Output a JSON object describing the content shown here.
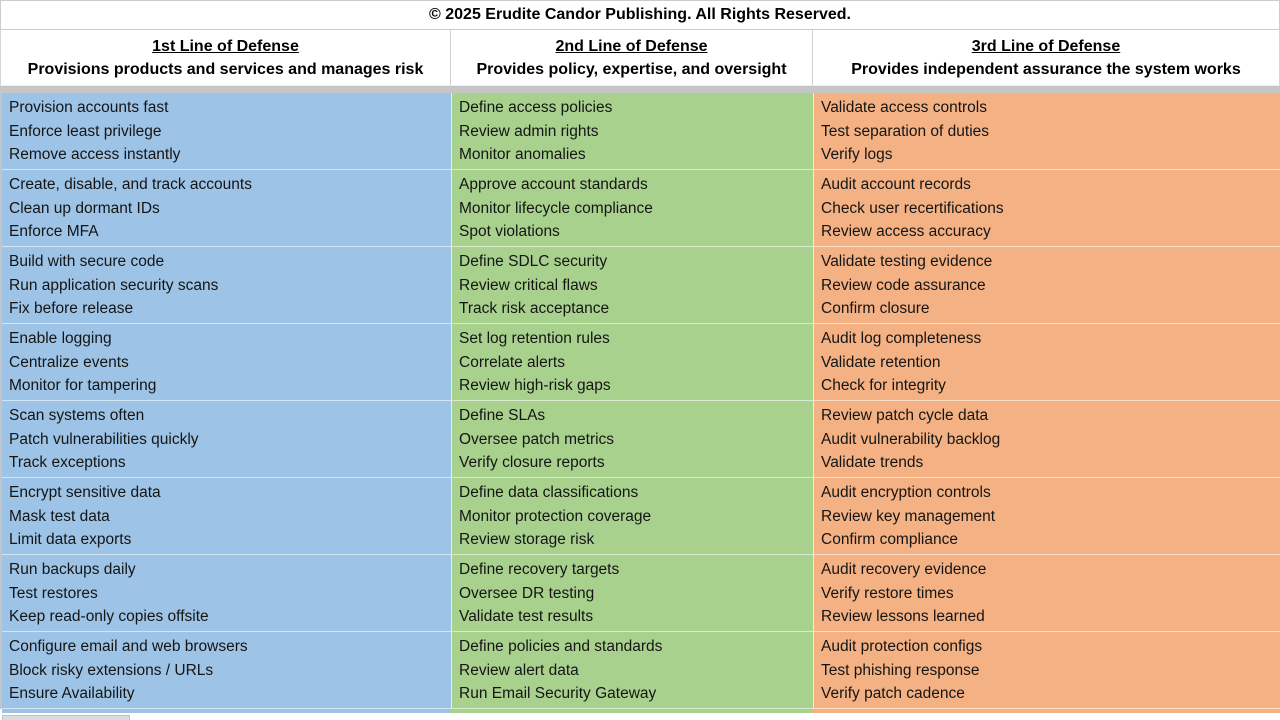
{
  "title_bar": {
    "text": "© 2025 Erudite Candor Publishing. All Rights Reserved."
  },
  "columns": [
    {
      "title": "1st Line of Defense",
      "subtitle": "Provisions products and services and manages risk",
      "color": "#9DC3E6"
    },
    {
      "title": "2nd Line of Defense",
      "subtitle": "Provides policy, expertise, and oversight",
      "color": "#A9D18E"
    },
    {
      "title": "3rd Line of Defense",
      "subtitle": "Provides independent assurance the system works",
      "color": "#F4B183"
    }
  ],
  "rows": [
    {
      "cells": [
        {
          "lines": [
            "Provision accounts fast",
            "Enforce least privilege",
            "Remove access instantly"
          ]
        },
        {
          "lines": [
            "Define access policies",
            "Review admin rights",
            "Monitor anomalies"
          ]
        },
        {
          "lines": [
            "Validate access controls",
            "Test separation of duties",
            "Verify logs"
          ]
        }
      ]
    },
    {
      "cells": [
        {
          "lines": [
            "Create, disable, and track accounts",
            "Clean up dormant IDs",
            "Enforce MFA"
          ]
        },
        {
          "lines": [
            "Approve account standards",
            "Monitor lifecycle compliance",
            "Spot violations"
          ]
        },
        {
          "lines": [
            "Audit account records",
            "Check user recertifications",
            "Review access accuracy"
          ]
        }
      ]
    },
    {
      "cells": [
        {
          "lines": [
            "Build with secure code",
            "Run application security scans",
            "Fix before release"
          ]
        },
        {
          "lines": [
            "Define SDLC security",
            "Review critical flaws",
            "Track risk acceptance"
          ]
        },
        {
          "lines": [
            "Validate testing evidence",
            "Review code assurance",
            "Confirm closure"
          ]
        }
      ]
    },
    {
      "cells": [
        {
          "lines": [
            "Enable logging",
            "Centralize events",
            "Monitor for tampering"
          ]
        },
        {
          "lines": [
            "Set log retention rules",
            "Correlate alerts",
            "Review high-risk gaps"
          ]
        },
        {
          "lines": [
            "Audit log completeness",
            "Validate retention",
            "Check for integrity"
          ]
        }
      ]
    },
    {
      "cells": [
        {
          "lines": [
            "Scan systems often",
            "Patch vulnerabilities quickly",
            "Track exceptions"
          ]
        },
        {
          "lines": [
            "Define SLAs",
            "Oversee patch metrics",
            "Verify closure reports"
          ]
        },
        {
          "lines": [
            "Review patch cycle data",
            "Audit vulnerability backlog",
            "Validate trends"
          ]
        }
      ]
    },
    {
      "cells": [
        {
          "lines": [
            "Encrypt sensitive data",
            "Mask test data",
            "Limit data exports"
          ]
        },
        {
          "lines": [
            "Define data classifications",
            "Monitor protection coverage",
            "Review storage risk"
          ]
        },
        {
          "lines": [
            "Audit encryption controls",
            "Review key management",
            "Confirm compliance"
          ]
        }
      ]
    },
    {
      "cells": [
        {
          "lines": [
            "Run backups daily",
            "Test restores",
            "Keep read-only copies offsite"
          ]
        },
        {
          "lines": [
            "Define recovery targets",
            "Oversee DR testing",
            "Validate test results"
          ]
        },
        {
          "lines": [
            "Audit recovery evidence",
            "Verify restore times",
            "Review lessons learned"
          ]
        }
      ]
    },
    {
      "cells": [
        {
          "lines": [
            "Configure email and web browsers",
            "Block risky extensions / URLs",
            "Ensure Availability"
          ]
        },
        {
          "lines": [
            "Define policies and standards",
            "Review alert data",
            "Run Email Security Gateway"
          ]
        },
        {
          "lines": [
            "Audit protection configs",
            "Test phishing response",
            "Verify patch cadence"
          ]
        }
      ]
    }
  ]
}
